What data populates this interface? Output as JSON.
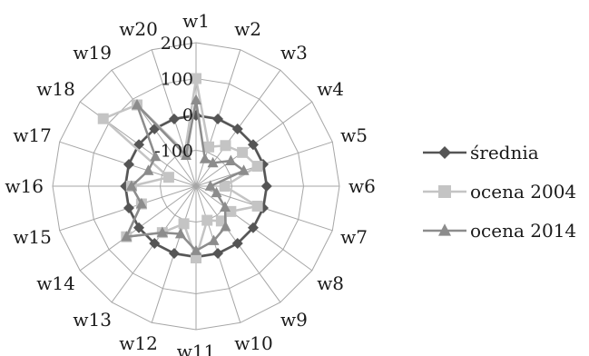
{
  "chart_data": {
    "type": "radar",
    "categories": [
      "w1",
      "w2",
      "w3",
      "w4",
      "w5",
      "w6",
      "w7",
      "w8",
      "w9",
      "w10",
      "w11",
      "w12",
      "w13",
      "w14",
      "w15",
      "w16",
      "w17",
      "w18",
      "w19",
      "w20"
    ],
    "r_ticks": [
      -100,
      0,
      100,
      200
    ],
    "r_tick_labels": [
      "-100",
      "0",
      "100",
      "200"
    ],
    "rlim": [
      -200,
      200
    ],
    "legend_position": "right",
    "series": [
      {
        "name": "średnia",
        "color": "#555555",
        "marker": "diamond",
        "values": [
          -3,
          -3,
          -3,
          -3,
          -3,
          -3,
          -3,
          -3,
          -3,
          -3,
          -3,
          -3,
          -3,
          -3,
          -3,
          -3,
          -3,
          -3,
          -3,
          -3
        ]
      },
      {
        "name": "ocena 2004",
        "color": "#c4c4c4",
        "marker": "square",
        "values": [
          100,
          -85,
          -60,
          -40,
          -20,
          -120,
          -20,
          -80,
          -80,
          -100,
          0,
          -90,
          -40,
          40,
          -40,
          -20,
          -120,
          120,
          80,
          -100
        ]
      },
      {
        "name": "ocena 2014",
        "color": "#8c8c8c",
        "marker": "triangle",
        "values": [
          40,
          -120,
          -120,
          -80,
          -60,
          -160,
          -140,
          -100,
          -60,
          -40,
          -20,
          -60,
          -40,
          40,
          -40,
          -20,
          -60,
          -60,
          80,
          -110
        ]
      }
    ]
  }
}
